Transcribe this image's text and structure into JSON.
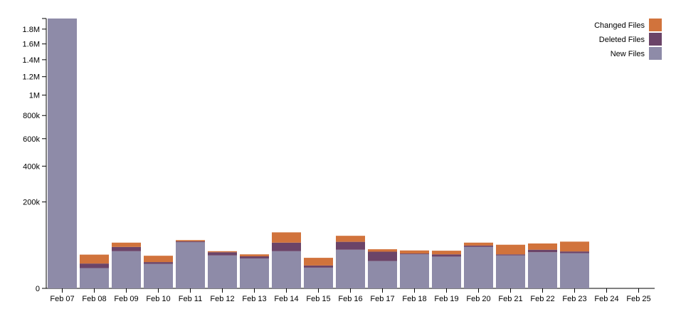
{
  "chart_data": {
    "type": "bar",
    "stacked": true,
    "y_scale": "sqrt",
    "categories": [
      "Feb 07",
      "Feb 08",
      "Feb 09",
      "Feb 10",
      "Feb 11",
      "Feb 12",
      "Feb 13",
      "Feb 14",
      "Feb 15",
      "Feb 16",
      "Feb 17",
      "Feb 18",
      "Feb 19",
      "Feb 20",
      "Feb 21",
      "Feb 22",
      "Feb 23",
      "Feb 24",
      "Feb 25"
    ],
    "series": [
      {
        "name": "New Files",
        "color": "#8e8ba8",
        "values": [
          1950000,
          11000,
          37000,
          16000,
          57000,
          29000,
          24000,
          37000,
          11500,
          40000,
          20000,
          31000,
          27000,
          46000,
          29000,
          35000,
          33000,
          0,
          0
        ]
      },
      {
        "name": "Deleted Files",
        "color": "#6b4468",
        "values": [
          0,
          5500,
          9000,
          2500,
          2500,
          6000,
          3500,
          19000,
          2500,
          18000,
          16000,
          1500,
          4000,
          3000,
          2000,
          5000,
          3500,
          0,
          0
        ]
      },
      {
        "name": "Changed Files",
        "color": "#d1733c",
        "values": [
          0,
          14000,
          10000,
          10000,
          3000,
          2000,
          3500,
          28000,
          11000,
          16000,
          5000,
          6000,
          7000,
          7000,
          20000,
          14000,
          22000,
          0,
          0
        ]
      }
    ],
    "y_ticks": [
      {
        "value": 0,
        "label": "0"
      },
      {
        "value": 200000,
        "label": "200k"
      },
      {
        "value": 400000,
        "label": "400k"
      },
      {
        "value": 600000,
        "label": "600k"
      },
      {
        "value": 800000,
        "label": "800k"
      },
      {
        "value": 1000000,
        "label": "1M"
      },
      {
        "value": 1200000,
        "label": "1.2M"
      },
      {
        "value": 1400000,
        "label": "1.4M"
      },
      {
        "value": 1600000,
        "label": "1.6M"
      },
      {
        "value": 1800000,
        "label": "1.8M"
      }
    ],
    "ylim": [
      0,
      1950000
    ],
    "legend": {
      "placement": "top-right",
      "entries": [
        {
          "label": "Changed Files",
          "color": "#d1733c"
        },
        {
          "label": "Deleted Files",
          "color": "#6b4468"
        },
        {
          "label": "New Files",
          "color": "#8e8ba8"
        }
      ]
    },
    "grid": false
  }
}
